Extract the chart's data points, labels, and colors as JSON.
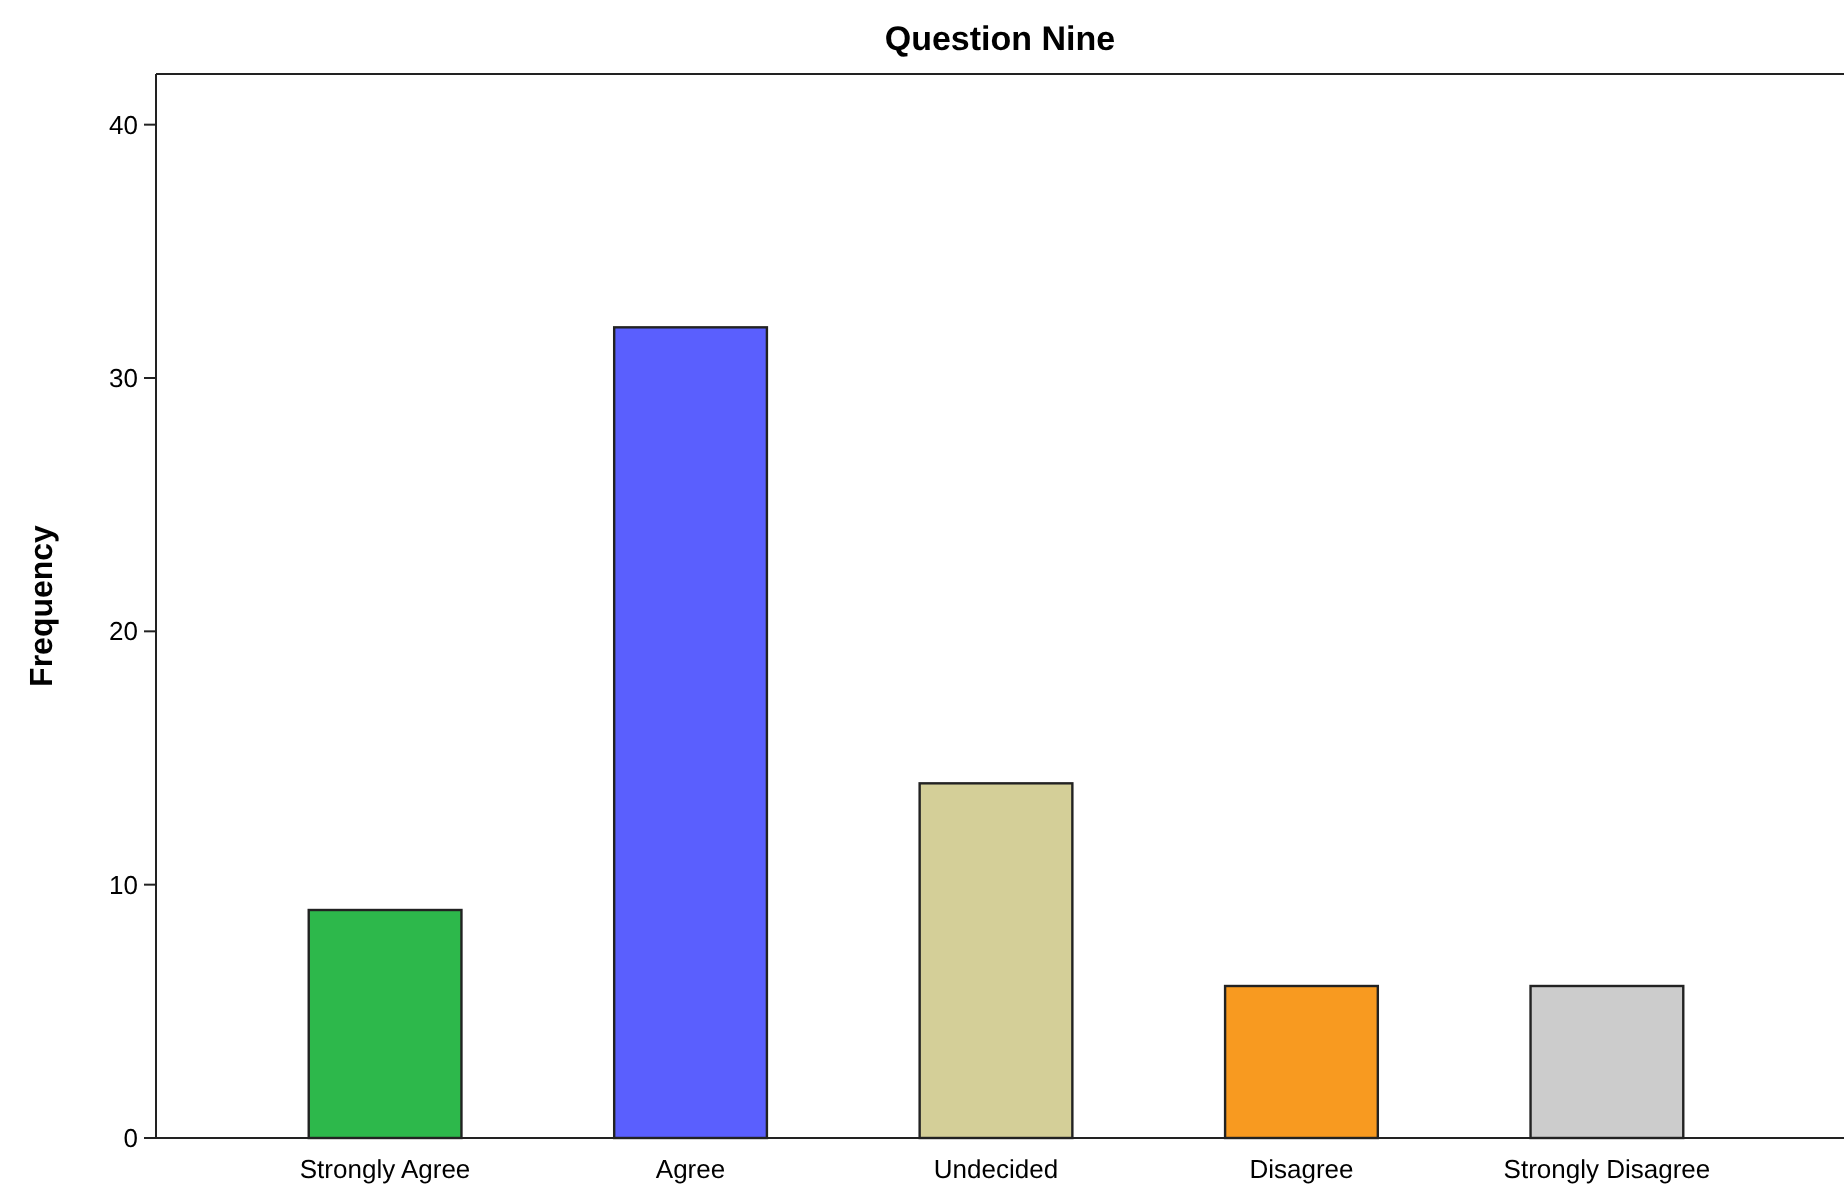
{
  "chart_data": {
    "type": "bar",
    "title": "Question Nine",
    "ylabel": "Frequency",
    "categories": [
      "Strongly Agree",
      "Agree",
      "Undecided",
      "Disagree",
      "Strongly Disagree"
    ],
    "values": [
      9,
      32,
      14,
      6,
      6
    ],
    "colors": [
      "#2db84b",
      "#5a5ffe",
      "#d4cf98",
      "#f89a20",
      "#cccccc"
    ],
    "ylim": [
      0,
      42
    ],
    "yticks": [
      0,
      10,
      20,
      30,
      40
    ],
    "grid": false
  }
}
